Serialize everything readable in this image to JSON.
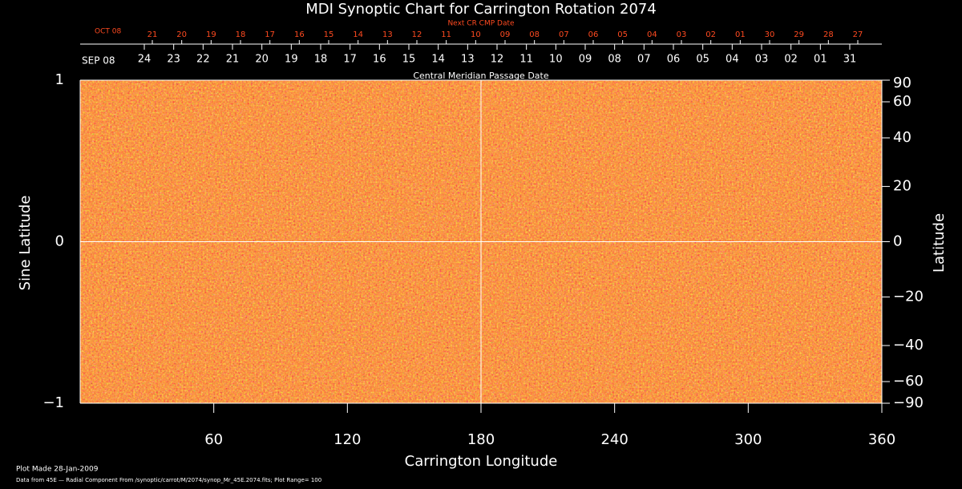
{
  "chart_data": {
    "type": "synoptic-map",
    "title": "MDI Synoptic Chart for Carrington Rotation 2074",
    "xlabel": "Carrington Longitude",
    "ylabel": "Sine Latitude",
    "y2label": "Latitude",
    "xlim": [
      0,
      360
    ],
    "xticks": [
      60,
      120,
      180,
      240,
      300,
      360
    ],
    "ylim": [
      -1,
      1
    ],
    "yticks": [
      {
        "value": -1,
        "label": "−1"
      },
      0,
      1
    ],
    "y2scale": "sine",
    "y2lim": [
      -90,
      90
    ],
    "y2ticks": [
      {
        "value": -90,
        "label": "−90"
      },
      {
        "value": -60,
        "label": "−60"
      },
      {
        "value": -40,
        "label": "−40"
      },
      {
        "value": -20,
        "label": "−20"
      },
      0,
      20,
      40,
      60,
      90
    ],
    "next_cmp_axis": {
      "label": "Next CR CMP Date",
      "month": "OCT 08",
      "labels": [
        "21",
        "20",
        "19",
        "18",
        "17",
        "16",
        "15",
        "14",
        "13",
        "12",
        "11",
        "10",
        "09",
        "08",
        "07",
        "06",
        "05",
        "04",
        "03",
        "02",
        "01",
        "30",
        "29",
        "28",
        "27"
      ],
      "x": [
        32.4,
        45.6,
        58.8,
        72,
        85.2,
        98.4,
        111.6,
        124.8,
        138,
        151.2,
        164.4,
        177.6,
        190.8,
        204,
        217.2,
        230.4,
        243.6,
        256.8,
        270,
        283.2,
        296.4,
        309.6,
        322.8,
        336,
        349.2
      ]
    },
    "cmp_axis": {
      "label": "Central Meridian Passage Date",
      "month": "SEP 08",
      "labels": [
        "24",
        "23",
        "22",
        "21",
        "20",
        "19",
        "18",
        "17",
        "16",
        "15",
        "14",
        "13",
        "12",
        "11",
        "10",
        "09",
        "08",
        "07",
        "06",
        "05",
        "04",
        "03",
        "02",
        "01",
        "31"
      ],
      "x": [
        28.8,
        42,
        55.2,
        68.4,
        81.6,
        94.8,
        108,
        121.2,
        134.4,
        147.6,
        160.8,
        174,
        187.2,
        200.4,
        213.6,
        226.8,
        240,
        253.2,
        266.4,
        279.6,
        292.8,
        306,
        319.2,
        332.4,
        345.6
      ]
    },
    "footnotes": [
      "Plot Made 28-Jan-2009",
      "Data from 45E — Radial Component From /synoptic/carrot/M/2074/synop_Mr_45E.2074.fits; Plot Range= 100"
    ]
  }
}
